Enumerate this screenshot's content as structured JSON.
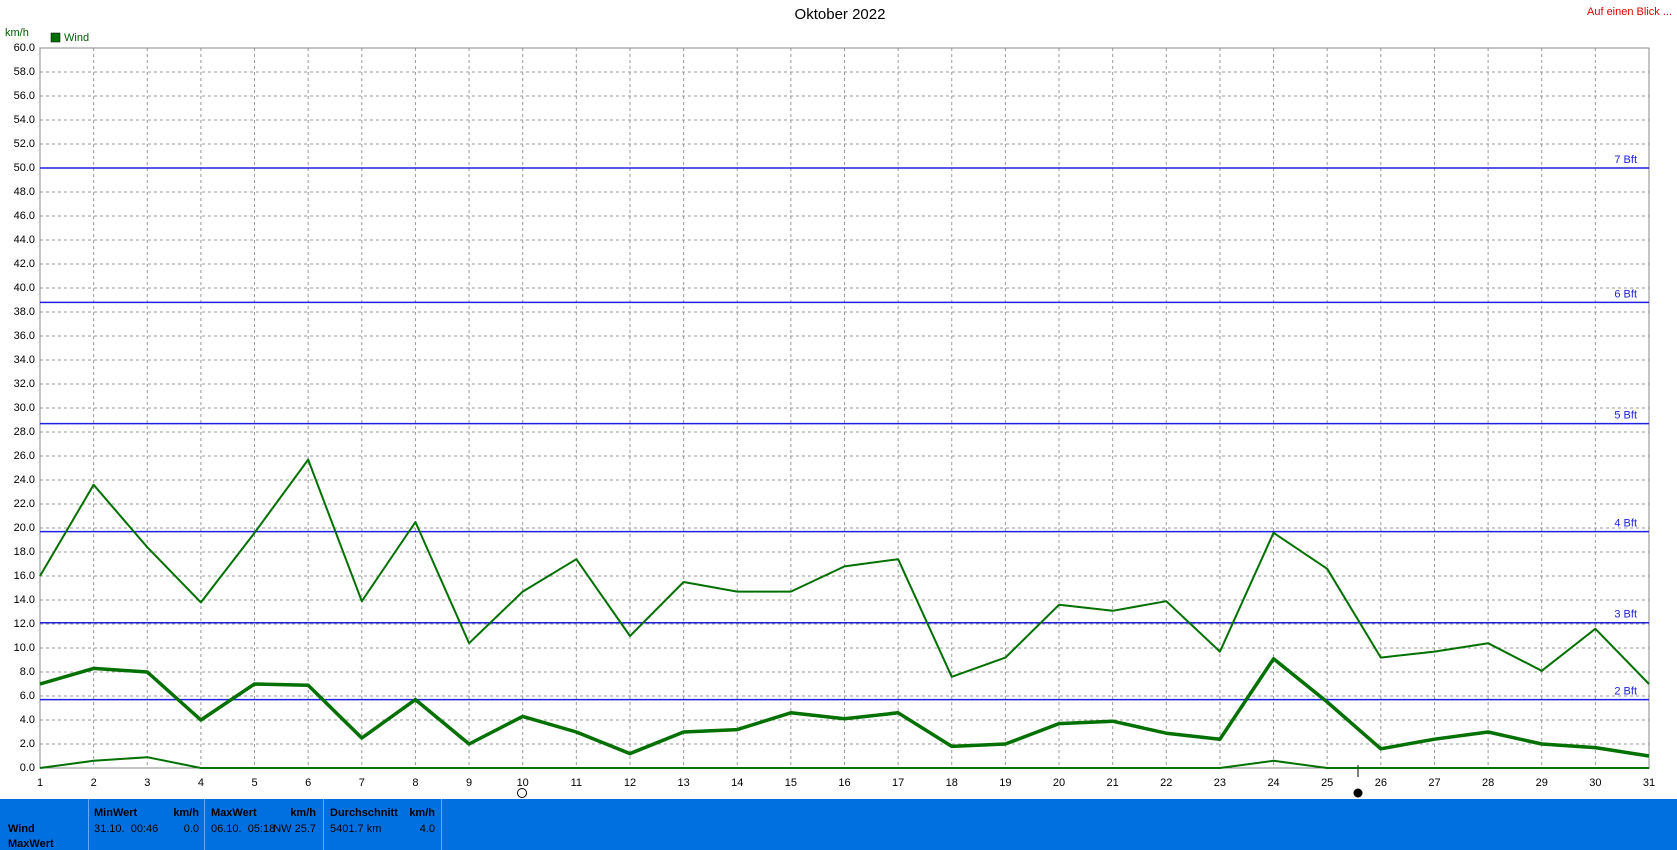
{
  "chart_data": {
    "type": "line",
    "title": "Oktober 2022",
    "corner_link": "Auf einen Blick ...",
    "y_label": "km/h",
    "legend": {
      "label": "Wind",
      "color": "#007000"
    },
    "x": [
      1,
      2,
      3,
      4,
      5,
      6,
      7,
      8,
      9,
      10,
      11,
      12,
      13,
      14,
      15,
      16,
      17,
      18,
      19,
      20,
      21,
      22,
      23,
      24,
      25,
      26,
      27,
      28,
      29,
      30,
      31
    ],
    "series": [
      {
        "color": "#007000",
        "width": 2,
        "values": [
          16.0,
          23.6,
          18.4,
          13.8,
          19.6,
          25.7,
          13.9,
          20.5,
          10.4,
          14.7,
          17.4,
          11.0,
          15.5,
          14.7,
          14.7,
          16.8,
          17.4,
          7.6,
          9.2,
          13.6,
          13.1,
          13.9,
          9.7,
          19.6,
          16.6,
          9.2,
          9.7,
          10.4,
          8.1,
          11.6,
          7.0
        ]
      },
      {
        "color": "#007000",
        "width": 3.5,
        "values": [
          7.0,
          8.3,
          8.0,
          4.0,
          7.0,
          6.9,
          2.5,
          5.7,
          2.0,
          4.3,
          3.0,
          1.2,
          3.0,
          3.2,
          4.6,
          4.1,
          4.6,
          1.8,
          2.0,
          3.7,
          3.9,
          2.9,
          2.4,
          9.1,
          5.5,
          1.6,
          2.4,
          3.0,
          2.0,
          1.7,
          1.0
        ]
      },
      {
        "color": "#007000",
        "width": 2,
        "values": [
          0,
          0.6,
          0.9,
          0,
          0,
          0,
          0,
          0,
          0,
          0,
          0,
          0,
          0,
          0,
          0,
          0,
          0,
          0,
          0,
          0,
          0,
          0,
          0,
          0.6,
          0,
          0,
          0,
          0,
          0,
          0,
          0
        ]
      }
    ],
    "xlim": [
      1,
      31
    ],
    "ylim": [
      0,
      60
    ],
    "xticks": [
      1,
      2,
      3,
      4,
      5,
      6,
      7,
      8,
      9,
      10,
      11,
      12,
      13,
      14,
      15,
      16,
      17,
      18,
      19,
      20,
      21,
      22,
      23,
      24,
      25,
      26,
      27,
      28,
      29,
      30,
      31
    ],
    "yticks": [
      {
        "value": 0,
        "label": "0.0"
      },
      {
        "value": 2,
        "label": "2.0"
      },
      {
        "value": 4,
        "label": "4.0"
      },
      {
        "value": 6,
        "label": "6.0"
      },
      {
        "value": 8,
        "label": "8.0"
      },
      {
        "value": 10,
        "label": "10.0"
      },
      {
        "value": 12,
        "label": "12.0"
      },
      {
        "value": 14,
        "label": "14.0"
      },
      {
        "value": 16,
        "label": "16.0"
      },
      {
        "value": 18,
        "label": "18.0"
      },
      {
        "value": 20,
        "label": "20.0"
      },
      {
        "value": 22,
        "label": "22.0"
      },
      {
        "value": 24,
        "label": "24.0"
      },
      {
        "value": 26,
        "label": "26.0"
      },
      {
        "value": 28,
        "label": "28.0"
      },
      {
        "value": 30,
        "label": "30.0"
      },
      {
        "value": 32,
        "label": "32.0"
      },
      {
        "value": 34,
        "label": "34.0"
      },
      {
        "value": 36,
        "label": "36.0"
      },
      {
        "value": 38,
        "label": "38.0"
      },
      {
        "value": 40,
        "label": "40.0"
      },
      {
        "value": 42,
        "label": "42.0"
      },
      {
        "value": 44,
        "label": "44.0"
      },
      {
        "value": 46,
        "label": "46.0"
      },
      {
        "value": 48,
        "label": "48.0"
      },
      {
        "value": 50,
        "label": "50.0"
      },
      {
        "value": 52,
        "label": "52.0"
      },
      {
        "value": 54,
        "label": "54.0"
      },
      {
        "value": 56,
        "label": "56.0"
      },
      {
        "value": 58,
        "label": "58.0"
      },
      {
        "value": 60,
        "label": "60.0"
      }
    ],
    "grid": true,
    "bft_lines": [
      {
        "value": 5.7,
        "label": "2 Bft"
      },
      {
        "value": 12.1,
        "label": "3 Bft"
      },
      {
        "value": 19.7,
        "label": "4 Bft"
      },
      {
        "value": 28.7,
        "label": "5 Bft"
      },
      {
        "value": 38.8,
        "label": "6 Bft"
      },
      {
        "value": 50.0,
        "label": "7 Bft"
      }
    ],
    "bft_color": "#2020e0"
  },
  "table": {
    "row_labels": [
      "Wind",
      "MaxWert"
    ],
    "columns": [
      {
        "title": "MinWert",
        "unit": "km/h",
        "time": "31.10.  00:46",
        "value": "0.0"
      },
      {
        "title": "MaxWert",
        "unit": "km/h",
        "time": "06.10.  05:18",
        "value": "NW 25.7"
      },
      {
        "title": "Durchschnitt",
        "unit": "km/h",
        "time": "5401.7 km",
        "value": "4.0"
      }
    ]
  }
}
